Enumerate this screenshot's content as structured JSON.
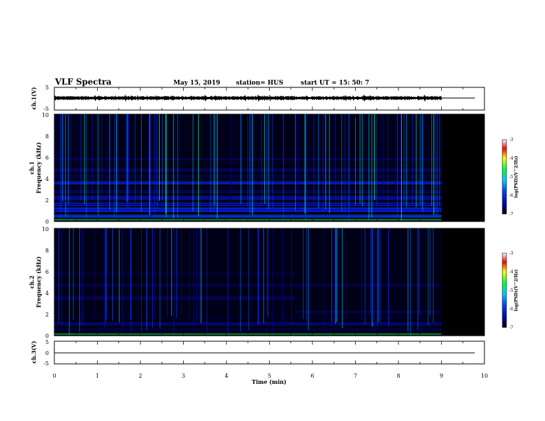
{
  "header": {
    "title": "VLF Spectra",
    "date": "May 15, 2019",
    "station": "station= HUS",
    "start": "start  UT  =   15: 50: 7"
  },
  "chart_data": [
    {
      "type": "line",
      "ylabel": "ch.1(V)",
      "ylim": [
        -5,
        5
      ],
      "yticks": [
        "5",
        "-5"
      ],
      "xlim": [
        0,
        10
      ],
      "signal_end_min": 9.0,
      "baseline": 0
    },
    {
      "type": "heatmap",
      "ylabel_channel": "ch.1",
      "ylabel": "Frequency (kHz)",
      "ylim": [
        0,
        10
      ],
      "yticks": [
        "0",
        "2",
        "4",
        "6",
        "8",
        "10"
      ],
      "xlim": [
        0,
        10
      ],
      "data_end_min": 9.0,
      "colorbar": {
        "label": "log(PSD)(V^2/Hz)",
        "ticks": [
          "-3",
          "-4",
          "-5",
          "-6",
          "-7"
        ],
        "range": [
          -7,
          -3
        ]
      },
      "bands_khz": [
        {
          "f": 0.5,
          "w": 0.25,
          "level": -5.6
        },
        {
          "f": 1.1,
          "w": 0.4,
          "level": -5.8
        },
        {
          "f": 1.6,
          "w": 0.3,
          "level": -6.0
        },
        {
          "f": 2.2,
          "w": 0.3,
          "level": -6.0
        },
        {
          "f": 2.8,
          "w": 0.2,
          "level": -6.3
        },
        {
          "f": 3.6,
          "w": 0.25,
          "level": -5.8
        },
        {
          "f": 4.2,
          "w": 0.2,
          "level": -6.4
        },
        {
          "f": 4.8,
          "w": 0.2,
          "level": -6.2
        },
        {
          "f": 5.8,
          "w": 0.15,
          "level": -6.3
        }
      ]
    },
    {
      "type": "heatmap",
      "ylabel_channel": "ch.2",
      "ylabel": "Frequency (kHz)",
      "ylim": [
        0,
        10
      ],
      "yticks": [
        "0",
        "2",
        "4",
        "6",
        "8",
        "10"
      ],
      "xlim": [
        0,
        10
      ],
      "data_end_min": 9.0,
      "colorbar": {
        "label": "log(PSD)(V^2/Hz)",
        "ticks": [
          "-3",
          "-4",
          "-5",
          "-6",
          "-7"
        ],
        "range": [
          -7,
          -3
        ]
      },
      "bands_khz": [
        {
          "f": 0.6,
          "w": 0.15,
          "level": -6.4
        },
        {
          "f": 1.1,
          "w": 0.25,
          "level": -6.2
        },
        {
          "f": 1.6,
          "w": 0.15,
          "level": -6.6
        },
        {
          "f": 2.2,
          "w": 0.2,
          "level": -6.4
        },
        {
          "f": 3.5,
          "w": 0.25,
          "level": -6.3
        },
        {
          "f": 4.7,
          "w": 0.2,
          "level": -6.4
        },
        {
          "f": 5.8,
          "w": 0.15,
          "level": -6.5
        }
      ]
    },
    {
      "type": "line",
      "ylabel": "ch.3(V)",
      "ylim": [
        -5,
        5
      ],
      "yticks": [
        "5",
        "0",
        "-5"
      ],
      "xlim": [
        0,
        10
      ],
      "baseline": 0
    }
  ],
  "xaxis": {
    "label": "Time  (min)",
    "ticks": [
      "0",
      "1",
      "2",
      "3",
      "4",
      "5",
      "6",
      "7",
      "8",
      "9",
      "10"
    ]
  }
}
